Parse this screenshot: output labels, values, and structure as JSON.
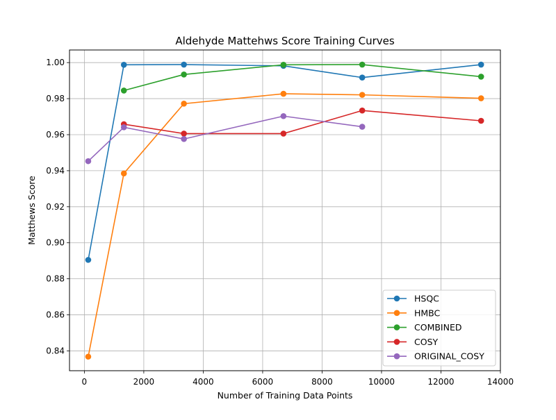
{
  "chart_data": {
    "type": "line",
    "title": "Aldehyde Mattehws Score Training Curves",
    "xlabel": "Number of Training Data Points",
    "ylabel": "Matthews Score",
    "xlim": [
      -500,
      14000
    ],
    "ylim": [
      0.829,
      1.007
    ],
    "xticks": [
      0,
      2000,
      4000,
      6000,
      8000,
      10000,
      12000,
      14000
    ],
    "yticks": [
      0.84,
      0.86,
      0.88,
      0.9,
      0.92,
      0.94,
      0.96,
      0.98,
      1.0
    ],
    "xtick_labels": [
      "0",
      "2000",
      "4000",
      "6000",
      "8000",
      "10000",
      "12000",
      "14000"
    ],
    "ytick_labels": [
      "0.84",
      "0.86",
      "0.88",
      "0.90",
      "0.92",
      "0.94",
      "0.96",
      "0.98",
      "1.00"
    ],
    "grid": true,
    "legend_position": "lower-right",
    "series": [
      {
        "name": "HSQC",
        "color": "#1f77b4",
        "x": [
          130,
          1330,
          3350,
          6700,
          9350,
          13350
        ],
        "y": [
          0.8905,
          0.9988,
          0.9989,
          0.9982,
          0.9917,
          0.9989
        ]
      },
      {
        "name": "HMBC",
        "color": "#ff7f0e",
        "x": [
          130,
          1330,
          3350,
          6700,
          9350,
          13350
        ],
        "y": [
          0.8368,
          0.9385,
          0.9772,
          0.9827,
          0.9821,
          0.9802
        ]
      },
      {
        "name": "COMBINED",
        "color": "#2ca02c",
        "x": [
          1330,
          3350,
          6700,
          9350,
          13350
        ],
        "y": [
          0.9845,
          0.9934,
          0.9988,
          0.9989,
          0.9922
        ]
      },
      {
        "name": "COSY",
        "color": "#d62728",
        "x": [
          1330,
          3350,
          6700,
          9350,
          13350
        ],
        "y": [
          0.9658,
          0.9606,
          0.9606,
          0.9734,
          0.9677
        ]
      },
      {
        "name": "ORIGINAL_COSY",
        "color": "#9467bd",
        "x": [
          130,
          1330,
          3350,
          6700,
          9350
        ],
        "y": [
          0.9453,
          0.9641,
          0.9576,
          0.9703,
          0.9644
        ]
      }
    ]
  }
}
